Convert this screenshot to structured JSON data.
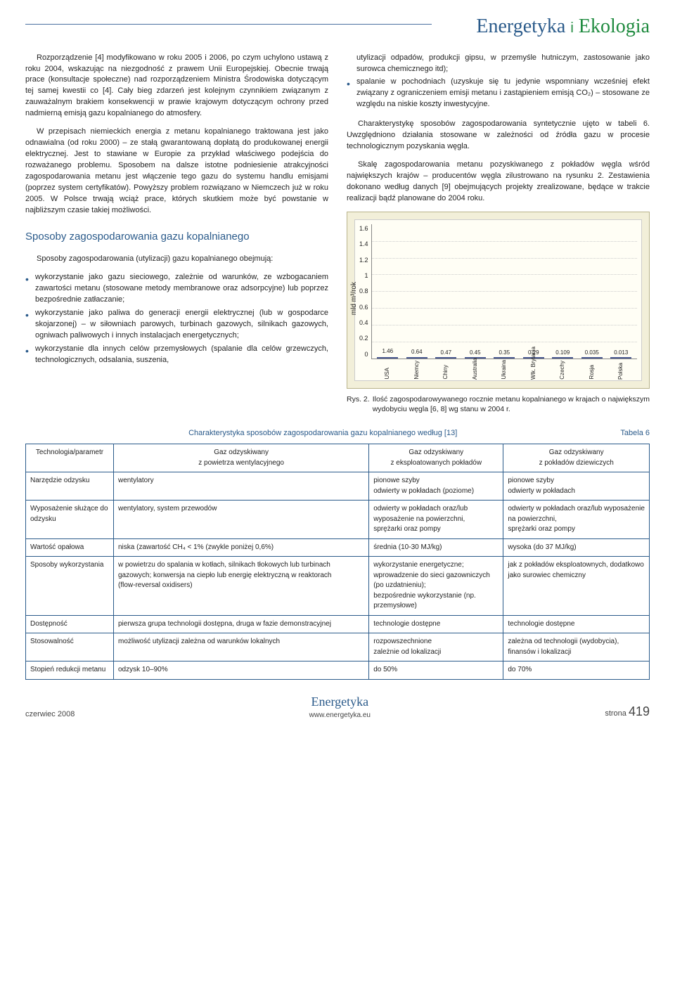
{
  "header": {
    "title1": "Energetyka",
    "i": "i",
    "title2": "Ekologia"
  },
  "left_col": {
    "p1": "Rozporządzenie [4] modyfikowano w roku 2005 i 2006, po czym uchylono ustawą z roku 2004, wskazując na niezgodność z prawem Unii Europejskiej. Obecnie trwają prace (konsultacje społeczne) nad rozporządzeniem Ministra Środowiska dotyczącym tej samej kwestii co [4]. Cały bieg zdarzeń jest kolejnym czynnikiem związanym z zauważalnym brakiem konsekwencji w prawie krajowym dotyczącym ochrony przed nadmierną emisją gazu kopalnianego do atmosfery.",
    "p2": "W przepisach niemieckich energia z metanu kopalnianego traktowana jest jako odnawialna (od roku 2000) – ze stałą gwarantowaną dopłatą do produkowanej energii elektrycznej. Jest to stawiane w Europie za przykład właściwego podejścia do rozważanego problemu. Sposobem na dalsze istotne podniesienie atrakcyjności zagospodarowania metanu jest włączenie tego gazu do systemu handlu emisjami (poprzez system certyfikatów). Powyższy problem rozwiązano w Niemczech już w roku 2005. W Polsce trwają wciąż prace, których skutkiem może być powstanie w najbliższym czasie takiej możliwości.",
    "heading": "Sposoby zagospodarowania gazu kopalnianego",
    "intro": "Sposoby zagospodarowania (utylizacji) gazu kopalnianego obejmują:",
    "bullets": [
      "wykorzystanie jako gazu sieciowego, zależnie od warunków, ze wzbogacaniem zawartości metanu (stosowane metody membranowe oraz adsorpcyjne) lub poprzez bezpośrednie zatłaczanie;",
      "wykorzystanie jako paliwa do generacji energii elektrycznej (lub w gospodarce skojarzonej) – w siłowniach parowych, turbinach gazowych, silnikach gazowych, ogniwach paliwowych i innych instalacjach energetycznych;",
      "wykorzystanie dla innych celów przemysłowych (spalanie dla celów grzewczych, technologicznych, odsalania, suszenia,"
    ]
  },
  "right_col": {
    "cont_bullets": [
      "utylizacji odpadów, produkcji gipsu, w przemyśle hutniczym, zastosowanie jako surowca chemicznego itd);",
      "spalanie w pochodniach (uzyskuje się tu jedynie wspomniany wcześniej efekt związany z ograniczeniem emisji metanu i zastąpieniem emisją CO₂) – stosowane ze względu na niskie koszty inwestycyjne."
    ],
    "p3": "Charakterystykę sposobów zagospodarowania syntetycznie ujęto w tabeli 6. Uwzględniono działania stosowane w zależności od źródła gazu w procesie technologicznym pozyskania węgla.",
    "p4": "Skalę zagospodarowania metanu pozyskiwanego z pokładów węgla wśród największych krajów – producentów węgla zilustrowano na rysunku 2. Zestawienia dokonano według danych [9] obejmujących projekty zrealizowane, będące w trakcie realizacji bądź planowane do 2004 roku."
  },
  "chart": {
    "ylabel": "mld m³/rok",
    "ymax": 1.6,
    "ytick_step": 0.2,
    "yticks": [
      "1.6",
      "1.4",
      "1.2",
      "1",
      "0.8",
      "0.6",
      "0.4",
      "0.2",
      "0"
    ],
    "bar_color": "#6a7ab5",
    "categories": [
      "USA",
      "Niemcy",
      "Chiny",
      "Australia",
      "Ukraina",
      "Wlk. Brytania",
      "Czechy",
      "Rosja",
      "Polska"
    ],
    "values": [
      1.46,
      0.64,
      0.47,
      0.45,
      0.35,
      0.29,
      0.109,
      0.035,
      0.013
    ],
    "labels": [
      "1.46",
      "0.64",
      "0.47",
      "0.45",
      "0.35",
      "0.29",
      "0.109",
      "0.035",
      "0.013"
    ]
  },
  "figcap": {
    "label": "Rys. 2.",
    "text": "Ilość zagospodarowywanego rocznie metanu kopalnianego w krajach o największym wydobyciu węgla [6, 8] wg stanu w 2004 r."
  },
  "table": {
    "num": "Tabela 6",
    "caption": "Charakterystyka sposobów zagospodarowania gazu kopalnianego według [13]",
    "headers": [
      "Technologia/parametr",
      "Gaz odzyskiwany\nz powietrza wentylacyjnego",
      "Gaz odzyskiwany\nz eksploatowanych pokładów",
      "Gaz odzyskiwany\nz pokładów dziewiczych"
    ],
    "rows": [
      [
        "Narzędzie odzysku",
        "wentylatory",
        "pionowe szyby\nodwierty w pokładach (poziome)",
        "pionowe szyby\nodwierty w pokładach"
      ],
      [
        "Wyposażenie służące do odzysku",
        "wentylatory, system przewodów",
        "odwierty w pokładach oraz/lub wyposażenie na powierzchni,\nsprężarki oraz pompy",
        "odwierty w pokładach oraz/lub wyposażenie na powierzchni,\nsprężarki oraz pompy"
      ],
      [
        "Wartość opałowa",
        "niska (zawartość CH₄ < 1% (zwykle poniżej 0,6%)",
        "średnia (10-30 MJ/kg)",
        "wysoka (do 37 MJ/kg)"
      ],
      [
        "Sposoby wykorzystania",
        "w powietrzu do spalania w kotłach, silnikach tłokowych lub turbinach gazowych; konwersja na ciepło lub energię elektryczną w reaktorach\n(flow-reversal oxidisers)",
        "wykorzystanie energetyczne;\nwprowadzenie do sieci gazowniczych (po uzdatnieniu);\nbezpośrednie wykorzystanie (np. przemysłowe)",
        "jak z pokładów eksploatownych, dodatkowo jako surowiec chemiczny"
      ],
      [
        "Dostępność",
        "pierwsza grupa technologii dostępna, druga w fazie demonstracyjnej",
        "technologie dostępne",
        "technologie dostępne"
      ],
      [
        "Stosowalność",
        "możliwość utylizacji zależna od warunków lokalnych",
        "rozpowszechnione\nzależnie od lokalizacji",
        "zależna od technologii (wydobycia), finansów i lokalizacji"
      ],
      [
        "Stopień redukcji metanu",
        "odzysk 10–90%",
        "do 50%",
        "do 70%"
      ]
    ]
  },
  "footer": {
    "left": "czerwiec 2008",
    "logo": "Energetyka",
    "url": "www.energetyka.eu",
    "right_label": "strona",
    "page": "419"
  }
}
